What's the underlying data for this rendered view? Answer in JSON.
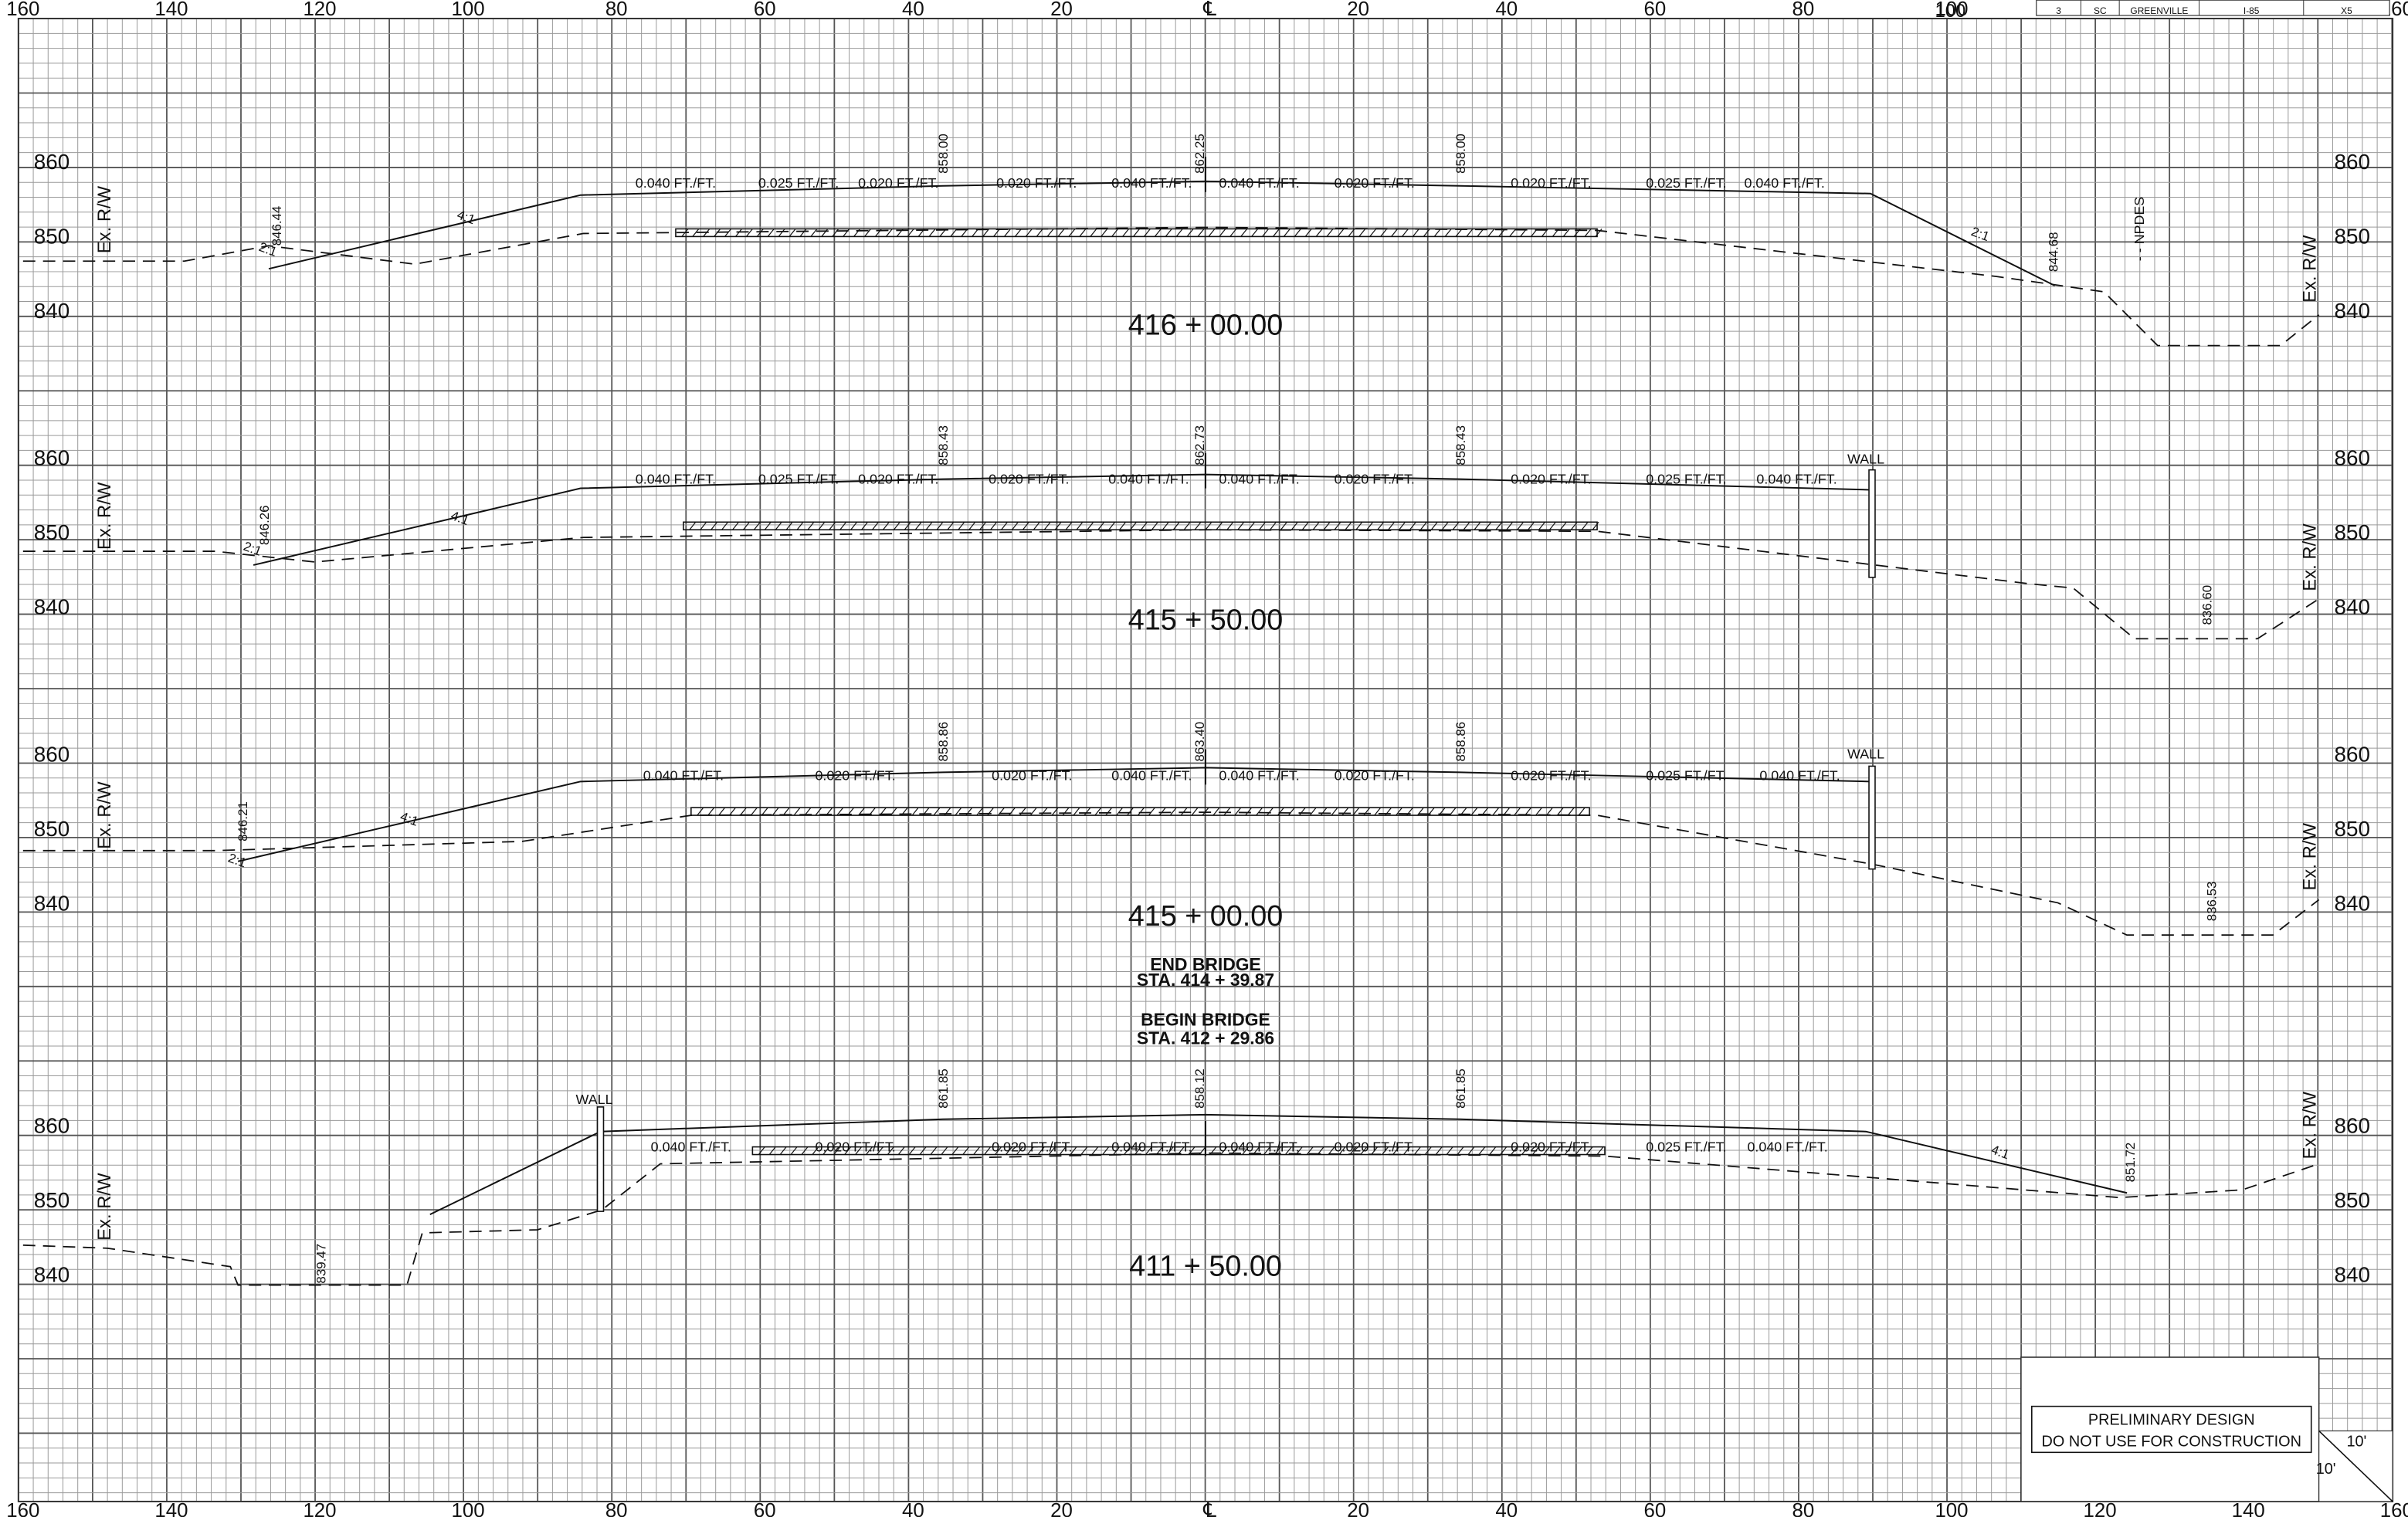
{
  "axis_top": [
    "160",
    "140",
    "120",
    "100",
    "80",
    "60",
    "40",
    "20",
    "℄",
    "20",
    "40",
    "60",
    "80",
    "100",
    "120",
    "140",
    "160"
  ],
  "axis_bottom": [
    "160",
    "140",
    "120",
    "100",
    "80",
    "60",
    "40",
    "20",
    "℄",
    "20",
    "40",
    "60",
    "80",
    "100",
    "120",
    "140",
    "160"
  ],
  "title_block": {
    "sheet": [
      "3",
      "SC",
      "GREENVILLE",
      "I-85",
      "X5"
    ],
    "station_number": "100"
  },
  "sections": [
    {
      "station": "416 + 00.00",
      "elevations_left": [
        "860",
        "850",
        "840"
      ],
      "elevations_right": [
        "860",
        "850",
        "840"
      ],
      "row_left": "Ex. R/W",
      "row_right": "Ex. R/W",
      "grades": [
        "0.040 FT./FT.",
        "0.025 FT./FT.",
        "0.020 FT./FT.",
        "0.020 FT./FT.",
        "0.040 FT./FT.",
        "0.040 FT./FT.",
        "0.020 FT./FT.",
        "0.020 FT./FT.",
        "0.025 FT./FT.",
        "0.040 FT./FT."
      ],
      "spot_elevations": [
        "858.00",
        "862.25",
        "858.00",
        "846.44",
        "844.68"
      ],
      "slopes": [
        "4:1",
        "2:1",
        "2:1"
      ],
      "labels": [
        "- - NPDES"
      ]
    },
    {
      "station": "415 + 50.00",
      "elevations_left": [
        "860",
        "850",
        "840"
      ],
      "elevations_right": [
        "860",
        "850",
        "840"
      ],
      "row_left": "Ex. R/W",
      "row_right": "Ex. R/W",
      "grades": [
        "0.040 FT./FT.",
        "0.025 FT./FT.",
        "0.020 FT./FT.",
        "0.020 FT./FT.",
        "0.040 FT./FT.",
        "0.040 FT./FT.",
        "0.020 FT./FT.",
        "0.020 FT./FT.",
        "0.025 FT./FT.",
        "0.040 FT./FT."
      ],
      "spot_elevations": [
        "858.43",
        "862.73",
        "858.43",
        "846.26",
        "836.60"
      ],
      "slopes": [
        "4:1",
        "2:1"
      ],
      "labels": [
        "WALL"
      ]
    },
    {
      "station": "415 + 00.00",
      "elevations_left": [
        "860",
        "850",
        "840"
      ],
      "elevations_right": [
        "860",
        "850",
        "840"
      ],
      "row_left": "Ex. R/W",
      "row_right": "Ex. R/W",
      "grades": [
        "0.040 FT./FT.",
        "0.020 FT./FT.",
        "0.020 FT./FT.",
        "0.040 FT./FT.",
        "0.040 FT./FT.",
        "0.020 FT./FT.",
        "0.020 FT./FT.",
        "0.025 FT./FT.",
        "0.040 FT./FT."
      ],
      "spot_elevations": [
        "858.86",
        "863.40",
        "858.86",
        "846.21",
        "836.53"
      ],
      "slopes": [
        "4:1",
        "2:1"
      ],
      "labels": [
        "WALL"
      ]
    },
    {
      "station": "411 + 50.00",
      "elevations_left": [
        "860",
        "850",
        "840"
      ],
      "elevations_right": [
        "860",
        "850",
        "840"
      ],
      "row_left": "Ex. R/W",
      "row_right": "Ex. R/W",
      "grades": [
        "0.040 FT./FT.",
        "0.020 FT./FT.",
        "0.020 FT./FT.",
        "0.040 FT./FT.",
        "0.040 FT./FT.",
        "0.020 FT./FT.",
        "0.020 FT./FT.",
        "0.025 FT./FT.",
        "0.040 FT./FT."
      ],
      "spot_elevations": [
        "861.85",
        "858.12",
        "861.85",
        "839.47",
        "851.72"
      ],
      "slopes": [
        "4:1"
      ],
      "labels": [
        "WALL"
      ]
    }
  ],
  "bridge_notes": [
    "END  BRIDGE",
    "STA. 414 + 39.87",
    "BEGIN  BRIDGE",
    "STA. 412 + 29.86"
  ],
  "disclaimer": [
    "PRELIMINARY DESIGN",
    "DO NOT USE FOR CONSTRUCTION"
  ],
  "scale": [
    "10'",
    "10'"
  ]
}
